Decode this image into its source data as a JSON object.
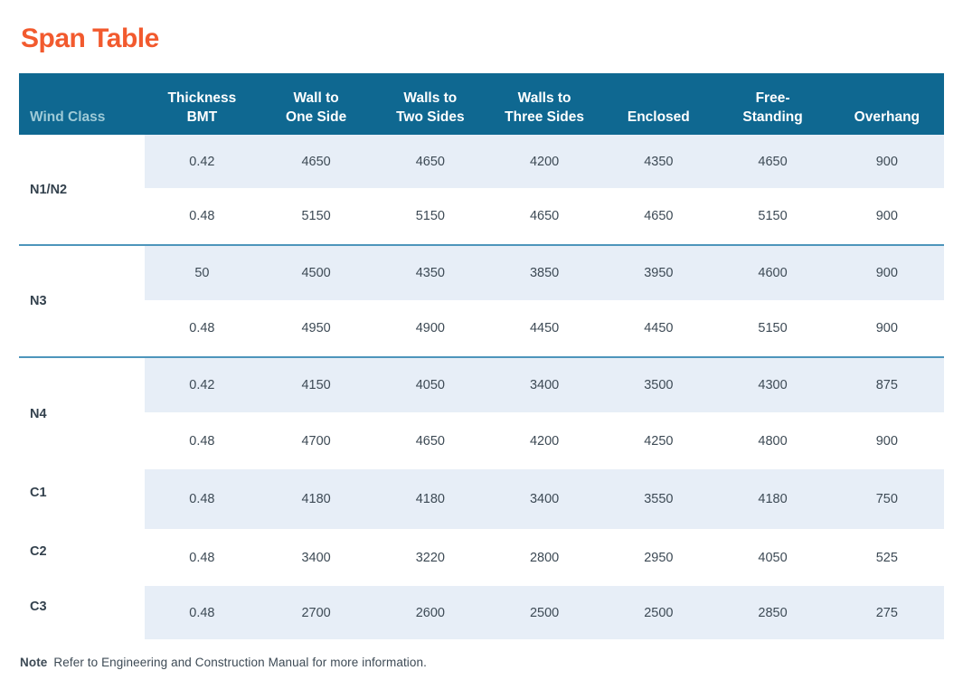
{
  "page": {
    "title": "Span Table",
    "note_label": "Note",
    "note_text": "Refer to Engineering and Construction Manual for more information."
  },
  "colors": {
    "title_orange": "#f25a2e",
    "header_bg": "#0f6891",
    "header_text": "#ffffff",
    "wind_class_header_text": "#9ecad7",
    "row_alt_bg": "#e7eef7",
    "group_separator": "#4d95bb",
    "body_text": "#3d4a55"
  },
  "table": {
    "header": {
      "wind_class": "Wind Class",
      "columns": [
        {
          "line1": "Thickness",
          "line2": "BMT"
        },
        {
          "line1": "Wall to",
          "line2": "One Side"
        },
        {
          "line1": "Walls to",
          "line2": "Two Sides"
        },
        {
          "line1": "Walls to",
          "line2": "Three Sides"
        },
        {
          "line1": "Enclosed",
          "line2": ""
        },
        {
          "line1": "Free-",
          "line2": "Standing"
        },
        {
          "line1": "Overhang",
          "line2": ""
        }
      ]
    },
    "groups": [
      {
        "wind_class": "N1/N2",
        "rows": [
          {
            "cells": [
              "0.42",
              "4650",
              "4650",
              "4200",
              "4350",
              "4650",
              "900"
            ]
          },
          {
            "cells": [
              "0.48",
              "5150",
              "5150",
              "4650",
              "4650",
              "5150",
              "900"
            ]
          }
        ]
      },
      {
        "wind_class": "N3",
        "rows": [
          {
            "cells": [
              "50",
              "4500",
              "4350",
              "3850",
              "3950",
              "4600",
              "900"
            ]
          },
          {
            "cells": [
              "0.48",
              "4950",
              "4900",
              "4450",
              "4450",
              "5150",
              "900"
            ]
          }
        ]
      },
      {
        "wind_class": "N4",
        "rows": [
          {
            "cells": [
              "0.42",
              "4150",
              "4050",
              "3400",
              "3500",
              "4300",
              "875"
            ]
          },
          {
            "cells": [
              "0.48",
              "4700",
              "4650",
              "4200",
              "4250",
              "4800",
              "900"
            ]
          }
        ]
      },
      {
        "wind_class": "C1",
        "rows": [
          {
            "cells": [
              "0.48",
              "4180",
              "4180",
              "3400",
              "3550",
              "4180",
              "750"
            ]
          }
        ]
      },
      {
        "wind_class": "C2",
        "rows": [
          {
            "cells": [
              "0.48",
              "3400",
              "3220",
              "2800",
              "2950",
              "4050",
              "525"
            ]
          }
        ]
      },
      {
        "wind_class": "C3",
        "rows": [
          {
            "cells": [
              "0.48",
              "2700",
              "2600",
              "2500",
              "2500",
              "2850",
              "275"
            ]
          }
        ]
      }
    ]
  }
}
